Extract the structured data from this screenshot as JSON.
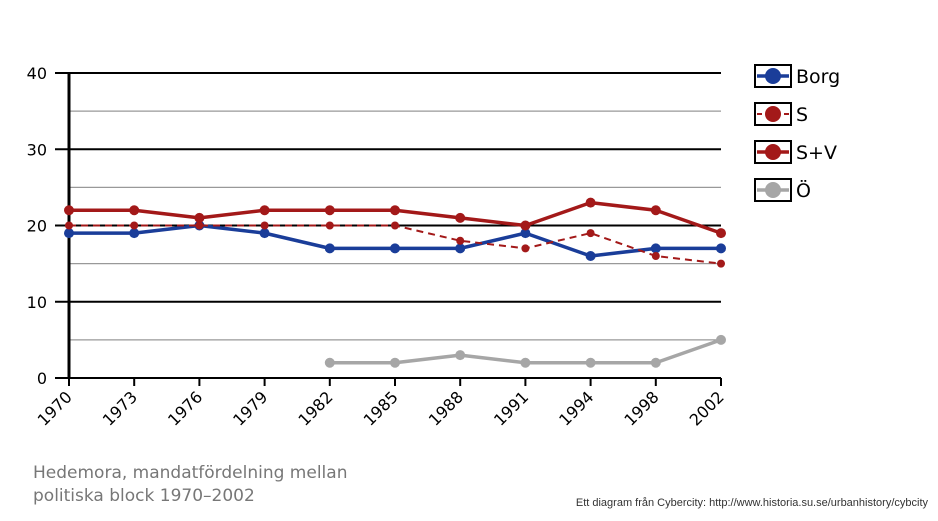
{
  "caption": {
    "line1": "Hedemora, mandatfördelning mellan",
    "line2": "politiska block 1970–2002"
  },
  "credit": "Ett diagram från Cybercity: http://www.historia.su.se/urbanhistory/cybcity",
  "chart_data": {
    "type": "line",
    "title": "",
    "xlabel": "",
    "ylabel": "",
    "categories": [
      "1970",
      "1973",
      "1976",
      "1979",
      "1982",
      "1985",
      "1988",
      "1991",
      "1994",
      "1998",
      "2002"
    ],
    "ylim": [
      0,
      40
    ],
    "yticks": [
      0,
      10,
      20,
      30,
      40
    ],
    "grid": true,
    "legend": "right",
    "series": [
      {
        "name": "Borg",
        "color": "#1a3d99",
        "dashed": false,
        "values": [
          19,
          19,
          20,
          19,
          17,
          17,
          17,
          19,
          16,
          17,
          17
        ]
      },
      {
        "name": "S",
        "color": "#a31919",
        "dashed": true,
        "values": [
          20,
          20,
          20,
          20,
          20,
          20,
          18,
          17,
          19,
          16,
          15
        ]
      },
      {
        "name": "S+V",
        "color": "#a31919",
        "dashed": false,
        "values": [
          22,
          22,
          21,
          22,
          22,
          22,
          21,
          20,
          23,
          22,
          19
        ]
      },
      {
        "name": "Ö",
        "color": "#a6a6a6",
        "dashed": false,
        "values": [
          null,
          null,
          null,
          null,
          2,
          2,
          3,
          2,
          2,
          2,
          5
        ]
      }
    ]
  }
}
